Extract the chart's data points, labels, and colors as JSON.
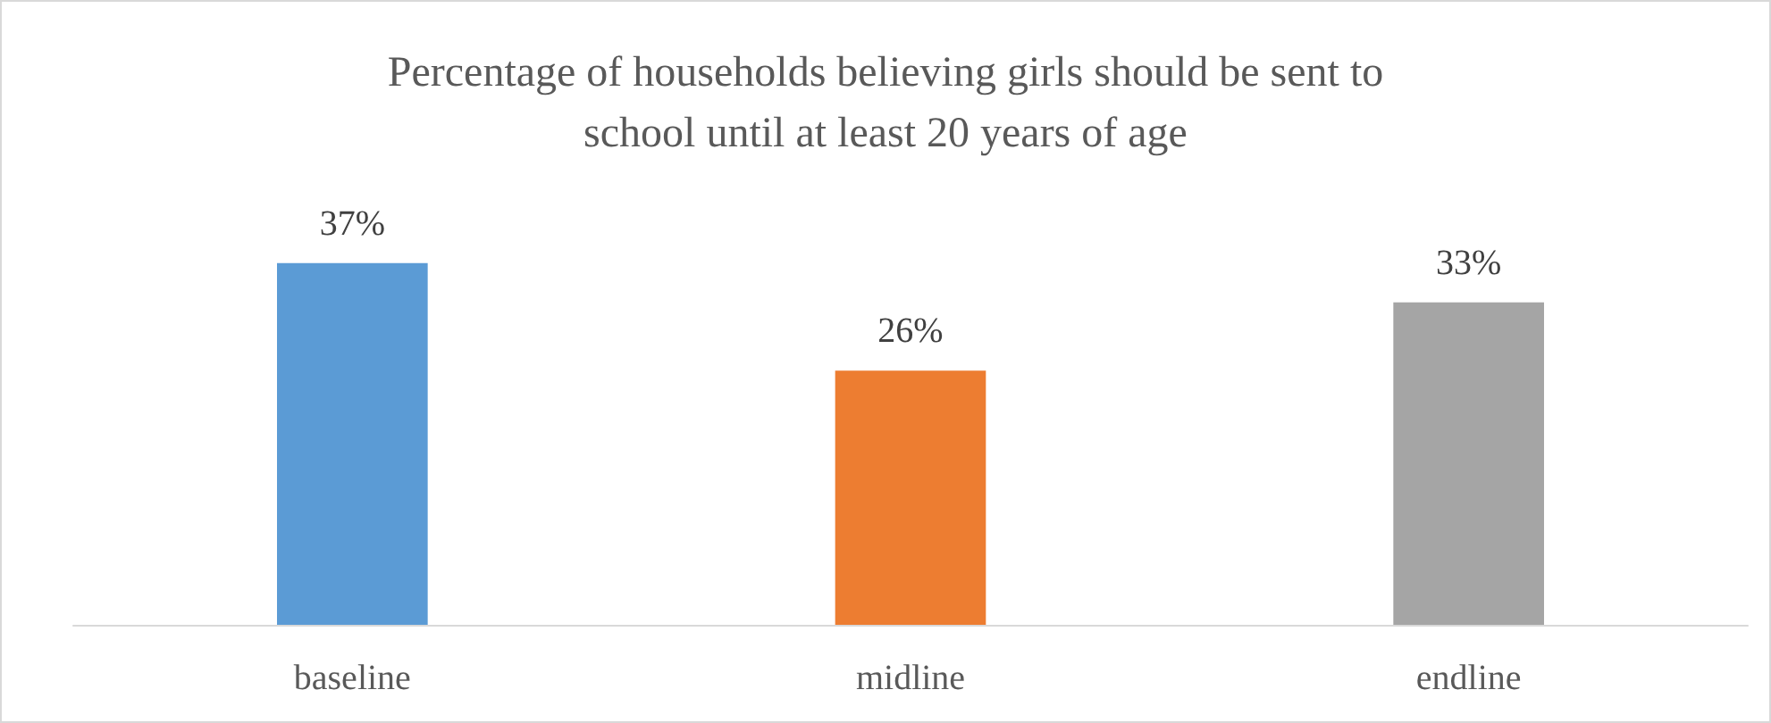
{
  "chart_data": {
    "type": "bar",
    "title": "Percentage of households believing girls should be sent to\nschool until at least 20 years of age",
    "categories": [
      "baseline",
      "midline",
      "endline"
    ],
    "values": [
      37,
      26,
      33
    ],
    "value_labels": [
      "37%",
      "26%",
      "33%"
    ],
    "colors": [
      "#5b9bd5",
      "#ed7d31",
      "#a5a5a5"
    ]
  }
}
